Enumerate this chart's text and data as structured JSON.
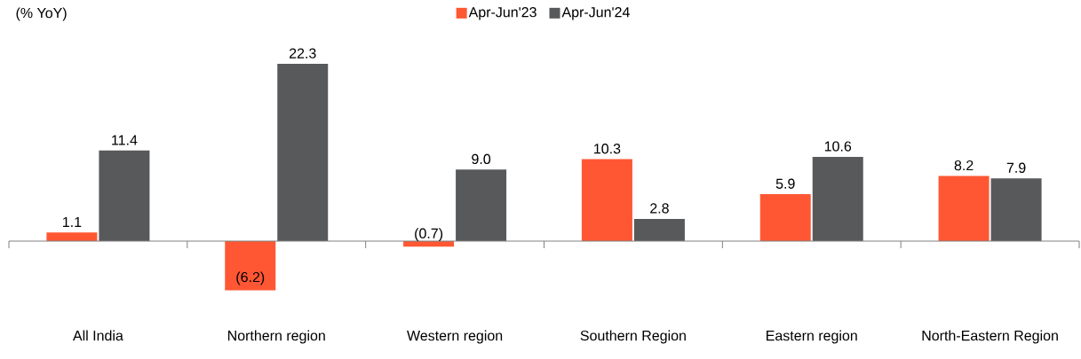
{
  "chart_data": {
    "type": "bar",
    "ylabel": "(% YoY)",
    "legend": "top",
    "categories": [
      "All India",
      "Northern region",
      "Western region",
      "Southern Region",
      "Eastern region",
      "North-Eastern Region"
    ],
    "series": [
      {
        "name": "Apr-Jun'23",
        "color": "#ff5733",
        "values": [
          1.1,
          -6.2,
          -0.7,
          10.3,
          5.9,
          8.2
        ],
        "value_labels": [
          "1.1",
          "(6.2)",
          "(0.7)",
          "10.3",
          "5.9",
          "8.2"
        ]
      },
      {
        "name": "Apr-Jun'24",
        "color": "#58595b",
        "values": [
          11.4,
          22.3,
          9.0,
          2.8,
          10.6,
          7.9
        ],
        "value_labels": [
          "11.4",
          "22.3",
          "9.0",
          "2.8",
          "10.6",
          "7.9"
        ]
      }
    ]
  }
}
